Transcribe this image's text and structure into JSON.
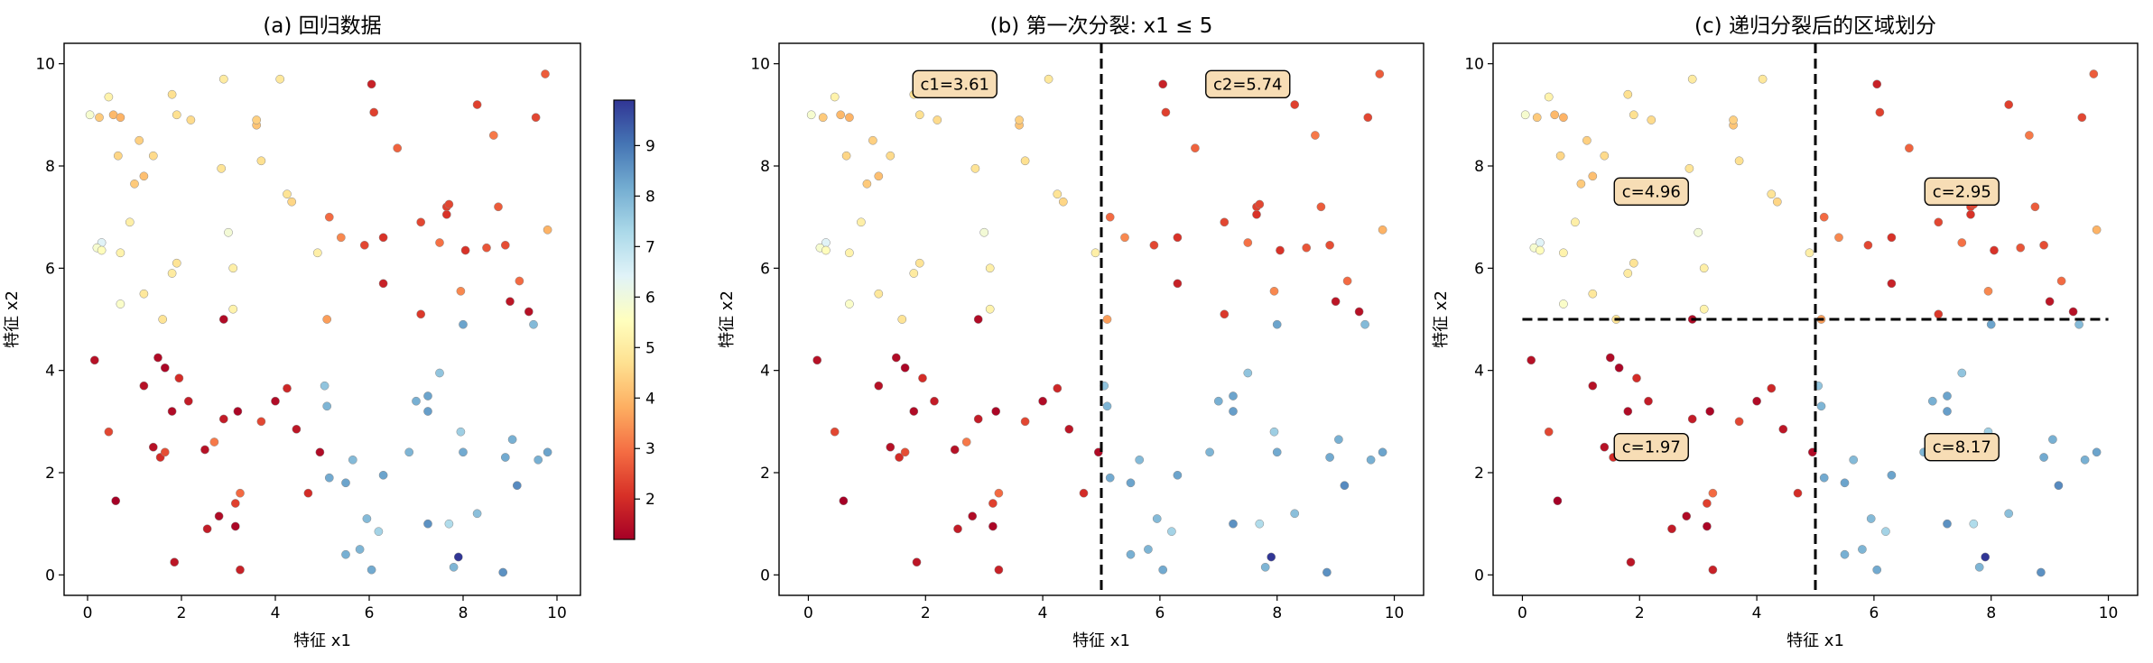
{
  "chart_data": [
    {
      "id": "a",
      "type": "scatter",
      "title": "(a) 回归数据",
      "xlabel": "特征 x1",
      "ylabel": "特征 x2",
      "xlim": [
        -0.5,
        10.5
      ],
      "ylim": [
        -0.4,
        10.4
      ],
      "xticks": [
        "0",
        "2",
        "4",
        "6",
        "8",
        "10"
      ],
      "yticks": [
        "0",
        "2",
        "4",
        "6",
        "8",
        "10"
      ],
      "colorbar": {
        "colormap": "RdYlBu",
        "range": [
          1.2,
          9.9
        ],
        "ticks": [
          "2",
          "3",
          "4",
          "5",
          "6",
          "7",
          "8",
          "9"
        ]
      },
      "splits": [],
      "annotations": []
    },
    {
      "id": "b",
      "type": "scatter",
      "title": "(b) 第一次分裂: x1 ≤ 5",
      "xlabel": "特征 x1",
      "ylabel": "特征 x2",
      "xlim": [
        -0.5,
        10.5
      ],
      "ylim": [
        -0.4,
        10.4
      ],
      "xticks": [
        "0",
        "2",
        "4",
        "6",
        "8",
        "10"
      ],
      "yticks": [
        "0",
        "2",
        "4",
        "6",
        "8",
        "10"
      ],
      "splits": [
        {
          "orientation": "vertical",
          "value": 5
        }
      ],
      "annotations": [
        {
          "text": "c1=3.61",
          "x": 2.5,
          "y": 9.6
        },
        {
          "text": "c2=5.74",
          "x": 7.5,
          "y": 9.6
        }
      ]
    },
    {
      "id": "c",
      "type": "scatter",
      "title": "(c) 递归分裂后的区域划分",
      "xlabel": "特征 x1",
      "ylabel": "特征 x2",
      "xlim": [
        -0.5,
        10.5
      ],
      "ylim": [
        -0.4,
        10.4
      ],
      "xticks": [
        "0",
        "2",
        "4",
        "6",
        "8",
        "10"
      ],
      "yticks": [
        "0",
        "2",
        "4",
        "6",
        "8",
        "10"
      ],
      "splits": [
        {
          "orientation": "vertical",
          "value": 5
        },
        {
          "orientation": "horizontal",
          "value": 5
        }
      ],
      "annotations": [
        {
          "text": "c=4.96",
          "x": 2.2,
          "y": 7.5
        },
        {
          "text": "c=2.95",
          "x": 7.5,
          "y": 7.5
        },
        {
          "text": "c=1.97",
          "x": 2.2,
          "y": 2.5
        },
        {
          "text": "c=8.17",
          "x": 7.5,
          "y": 2.5
        }
      ]
    }
  ],
  "points": [
    [
      0.05,
      9.0,
      5.8
    ],
    [
      0.45,
      9.35,
      5.2
    ],
    [
      0.25,
      8.95,
      4.3
    ],
    [
      0.55,
      9.0,
      4.0
    ],
    [
      0.7,
      8.95,
      3.9
    ],
    [
      0.65,
      8.2,
      4.5
    ],
    [
      1.1,
      8.5,
      4.4
    ],
    [
      1.2,
      7.8,
      4.1
    ],
    [
      1.0,
      7.65,
      4.3
    ],
    [
      1.4,
      8.2,
      4.6
    ],
    [
      1.8,
      9.4,
      4.7
    ],
    [
      1.9,
      9.0,
      4.7
    ],
    [
      2.2,
      8.9,
      4.6
    ],
    [
      2.9,
      9.7,
      5.0
    ],
    [
      2.85,
      7.95,
      4.8
    ],
    [
      3.6,
      8.8,
      4.2
    ],
    [
      3.6,
      8.9,
      4.4
    ],
    [
      3.7,
      8.1,
      4.7
    ],
    [
      4.1,
      9.7,
      4.9
    ],
    [
      4.25,
      7.45,
      4.8
    ],
    [
      4.35,
      7.3,
      4.5
    ],
    [
      0.9,
      6.9,
      5.1
    ],
    [
      0.3,
      6.5,
      6.4
    ],
    [
      0.2,
      6.4,
      5.8
    ],
    [
      0.3,
      6.35,
      5.5
    ],
    [
      0.7,
      6.3,
      5.2
    ],
    [
      0.7,
      5.3,
      5.7
    ],
    [
      1.2,
      5.5,
      4.9
    ],
    [
      1.6,
      5.0,
      4.8
    ],
    [
      1.8,
      5.9,
      5.0
    ],
    [
      1.9,
      6.1,
      4.8
    ],
    [
      3.0,
      6.7,
      5.9
    ],
    [
      3.1,
      6.0,
      5.1
    ],
    [
      3.1,
      5.2,
      5.2
    ],
    [
      2.9,
      5.0,
      1.4
    ],
    [
      4.9,
      6.3,
      5.1
    ],
    [
      5.15,
      7.0,
      2.9
    ],
    [
      5.1,
      5.0,
      3.6
    ],
    [
      5.4,
      6.6,
      3.3
    ],
    [
      5.9,
      6.45,
      2.4
    ],
    [
      6.05,
      9.6,
      1.8
    ],
    [
      6.1,
      9.05,
      2.3
    ],
    [
      6.3,
      6.6,
      2.1
    ],
    [
      6.3,
      5.7,
      1.8
    ],
    [
      6.6,
      8.35,
      2.8
    ],
    [
      7.1,
      6.9,
      2.4
    ],
    [
      7.1,
      5.1,
      2.2
    ],
    [
      7.5,
      6.5,
      3.0
    ],
    [
      7.65,
      7.05,
      2.1
    ],
    [
      7.65,
      7.2,
      2.3
    ],
    [
      7.7,
      7.25,
      2.4
    ],
    [
      7.95,
      5.55,
      3.3
    ],
    [
      8.05,
      6.35,
      2.1
    ],
    [
      8.3,
      9.2,
      2.3
    ],
    [
      8.5,
      6.4,
      2.6
    ],
    [
      8.65,
      8.6,
      3.1
    ],
    [
      8.75,
      7.2,
      2.7
    ],
    [
      8.9,
      6.45,
      2.5
    ],
    [
      9.0,
      5.35,
      1.6
    ],
    [
      9.2,
      5.75,
      2.9
    ],
    [
      9.4,
      5.15,
      1.5
    ],
    [
      9.55,
      8.95,
      2.4
    ],
    [
      9.75,
      9.8,
      2.7
    ],
    [
      9.8,
      6.75,
      3.9
    ],
    [
      9.5,
      4.9,
      7.9
    ],
    [
      0.15,
      4.2,
      1.5
    ],
    [
      0.45,
      2.8,
      2.4
    ],
    [
      0.6,
      1.45,
      1.2
    ],
    [
      1.2,
      3.7,
      1.5
    ],
    [
      1.5,
      4.25,
      1.4
    ],
    [
      1.4,
      2.5,
      1.5
    ],
    [
      1.55,
      2.3,
      2.0
    ],
    [
      1.65,
      2.4,
      2.5
    ],
    [
      1.65,
      4.05,
      1.3
    ],
    [
      1.8,
      3.2,
      1.4
    ],
    [
      1.85,
      0.25,
      1.6
    ],
    [
      1.95,
      3.85,
      2.0
    ],
    [
      2.15,
      3.4,
      1.7
    ],
    [
      2.5,
      2.45,
      1.5
    ],
    [
      2.7,
      2.6,
      3.1
    ],
    [
      2.55,
      0.9,
      1.7
    ],
    [
      2.8,
      1.15,
      1.4
    ],
    [
      2.9,
      3.05,
      1.7
    ],
    [
      3.15,
      0.95,
      1.3
    ],
    [
      3.15,
      1.4,
      2.3
    ],
    [
      3.2,
      3.2,
      1.3
    ],
    [
      3.25,
      1.6,
      2.9
    ],
    [
      3.25,
      0.1,
      1.8
    ],
    [
      3.7,
      3.0,
      2.4
    ],
    [
      4.0,
      3.4,
      1.4
    ],
    [
      4.25,
      3.65,
      1.9
    ],
    [
      4.45,
      2.85,
      1.6
    ],
    [
      4.7,
      1.6,
      2.0
    ],
    [
      4.95,
      2.4,
      1.4
    ],
    [
      5.05,
      3.7,
      7.7
    ],
    [
      5.1,
      3.3,
      8.0
    ],
    [
      5.15,
      1.9,
      8.2
    ],
    [
      5.5,
      1.8,
      8.3
    ],
    [
      5.65,
      2.25,
      7.9
    ],
    [
      5.5,
      0.4,
      8.1
    ],
    [
      5.8,
      0.5,
      8.0
    ],
    [
      6.05,
      0.1,
      8.2
    ],
    [
      5.95,
      1.1,
      7.9
    ],
    [
      6.2,
      0.85,
      7.4
    ],
    [
      6.3,
      1.95,
      8.3
    ],
    [
      6.85,
      2.4,
      8.0
    ],
    [
      7.0,
      3.4,
      8.1
    ],
    [
      7.25,
      3.2,
      8.4
    ],
    [
      7.25,
      3.5,
      8.3
    ],
    [
      7.5,
      3.95,
      7.7
    ],
    [
      7.25,
      1.0,
      8.6
    ],
    [
      7.7,
      1.0,
      7.2
    ],
    [
      7.9,
      0.35,
      9.9
    ],
    [
      7.8,
      0.15,
      8.0
    ],
    [
      7.95,
      2.8,
      7.5
    ],
    [
      8.0,
      2.4,
      8.2
    ],
    [
      8.0,
      4.9,
      8.3
    ],
    [
      8.3,
      1.2,
      7.8
    ],
    [
      8.85,
      0.05,
      8.6
    ],
    [
      8.9,
      2.3,
      8.2
    ],
    [
      9.05,
      2.65,
      8.1
    ],
    [
      9.15,
      1.75,
      8.7
    ],
    [
      9.6,
      2.25,
      8.1
    ],
    [
      9.8,
      2.4,
      8.3
    ]
  ]
}
